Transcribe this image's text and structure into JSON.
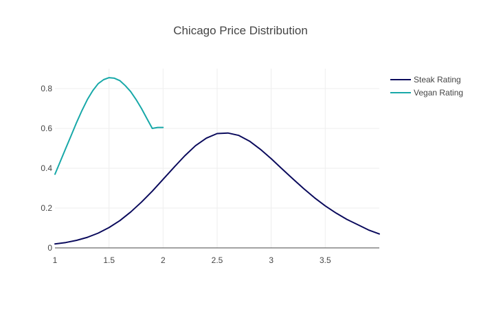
{
  "chart_data": {
    "type": "line",
    "title": "Chicago Price Distribution",
    "xlabel": "",
    "ylabel": "",
    "xlim": [
      1,
      4
    ],
    "ylim": [
      0,
      0.9
    ],
    "x_ticks": [
      1,
      1.5,
      2,
      2.5,
      3,
      3.5
    ],
    "x_tick_labels": [
      "1",
      "1.5",
      "2",
      "2.5",
      "3",
      "3.5"
    ],
    "y_ticks": [
      0,
      0.2,
      0.4,
      0.6,
      0.8
    ],
    "y_tick_labels": [
      "0",
      "0.2",
      "0.4",
      "0.6",
      "0.8"
    ],
    "grid": true,
    "legend_position": "top-right",
    "series": [
      {
        "name": "Steak Rating",
        "color": "#0a0a5c",
        "x": [
          1.0,
          1.1,
          1.2,
          1.3,
          1.4,
          1.5,
          1.6,
          1.7,
          1.8,
          1.9,
          2.0,
          2.1,
          2.2,
          2.3,
          2.4,
          2.5,
          2.6,
          2.7,
          2.8,
          2.9,
          3.0,
          3.1,
          3.2,
          3.3,
          3.4,
          3.5,
          3.6,
          3.7,
          3.8,
          3.9,
          4.0
        ],
        "y": [
          0.02,
          0.027,
          0.038,
          0.053,
          0.074,
          0.102,
          0.137,
          0.18,
          0.23,
          0.285,
          0.344,
          0.404,
          0.462,
          0.513,
          0.551,
          0.574,
          0.577,
          0.565,
          0.536,
          0.495,
          0.448,
          0.397,
          0.347,
          0.298,
          0.252,
          0.211,
          0.175,
          0.143,
          0.117,
          0.09,
          0.07
        ]
      },
      {
        "name": "Vegan Rating",
        "color": "#17a8a8",
        "x": [
          1.0,
          1.05,
          1.1,
          1.15,
          1.2,
          1.25,
          1.3,
          1.35,
          1.4,
          1.45,
          1.5,
          1.55,
          1.6,
          1.65,
          1.7,
          1.75,
          1.8,
          1.85,
          1.9,
          1.95,
          2.0
        ],
        "y": [
          0.37,
          0.435,
          0.5,
          0.565,
          0.63,
          0.69,
          0.745,
          0.79,
          0.825,
          0.845,
          0.855,
          0.852,
          0.84,
          0.815,
          0.785,
          0.745,
          0.7,
          0.65,
          0.6,
          0.605,
          0.605
        ]
      }
    ]
  }
}
